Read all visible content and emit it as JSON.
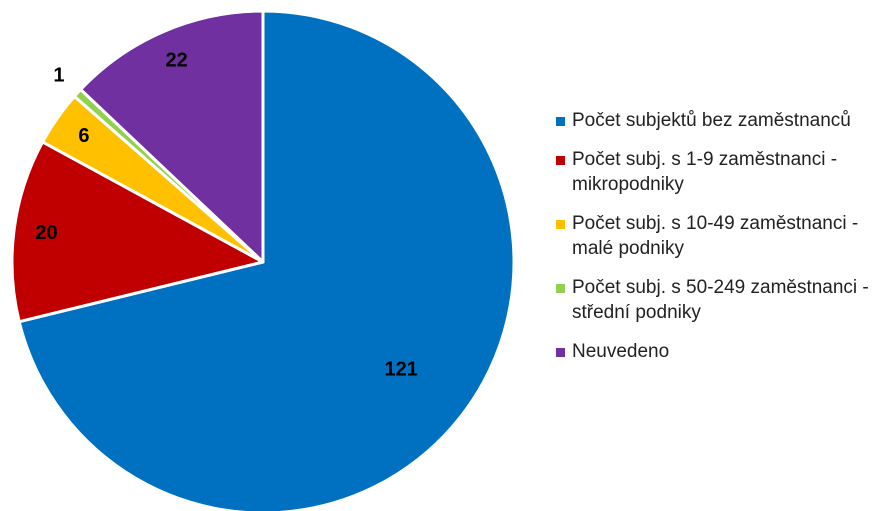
{
  "chart_data": {
    "type": "pie",
    "categories": [
      "Počet subjektů bez zaměstnanců",
      "Počet subj. s 1-9 zaměstnanci - mikropodniky",
      "Počet subj. s 10-49 zaměstnanci - malé podniky",
      "Počet subj. s 50-249 zaměstnanci - střední podniky",
      "Neuvedeno"
    ],
    "values": [
      121,
      20,
      6,
      1,
      22
    ],
    "colors": [
      "#0070c0",
      "#c00000",
      "#ffc000",
      "#92d050",
      "#7030a0"
    ],
    "legend": "right"
  }
}
